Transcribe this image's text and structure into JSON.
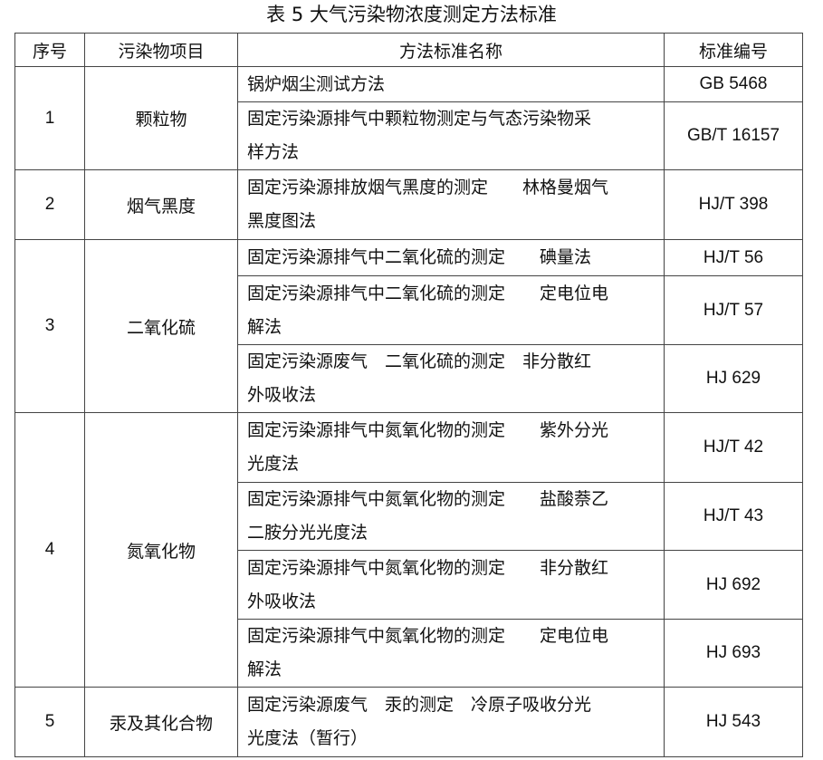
{
  "title": "表 5 大气污染物浓度测定方法标准",
  "headers": [
    "序号",
    "污染物项目",
    "方法标准名称",
    "标准编号"
  ],
  "groups": [
    {
      "no": "1",
      "item": "颗粒物",
      "methods": [
        {
          "name": "锅炉烟尘测试方法",
          "code": "GB 5468"
        },
        {
          "name": "固定污染源排气中颗粒物测定与气态污染物采\n样方法",
          "code": "GB/T 16157"
        }
      ]
    },
    {
      "no": "2",
      "item": "烟气黑度",
      "methods": [
        {
          "name": "固定污染源排放烟气黑度的测定　　林格曼烟气\n黑度图法",
          "code": "HJ/T 398"
        }
      ]
    },
    {
      "no": "3",
      "item": "二氧化硫",
      "methods": [
        {
          "name": "固定污染源排气中二氧化硫的测定　　碘量法",
          "code": "HJ/T 56"
        },
        {
          "name": "固定污染源排气中二氧化硫的测定　　定电位电\n解法",
          "code": "HJ/T 57"
        },
        {
          "name": "固定污染源废气　二氧化硫的测定　非分散红\n外吸收法",
          "code": "HJ 629"
        }
      ]
    },
    {
      "no": "4",
      "item": "氮氧化物",
      "methods": [
        {
          "name": "固定污染源排气中氮氧化物的测定　　紫外分光\n光度法",
          "code": "HJ/T 42"
        },
        {
          "name": "固定污染源排气中氮氧化物的测定　　盐酸萘乙\n二胺分光光度法",
          "code": "HJ/T 43"
        },
        {
          "name": "固定污染源排气中氮氧化物的测定　　非分散红\n外吸收法",
          "code": "HJ 692"
        },
        {
          "name": "固定污染源排气中氮氧化物的测定　　定电位电\n解法",
          "code": "HJ 693"
        }
      ]
    },
    {
      "no": "5",
      "item": "汞及其化合物",
      "methods": [
        {
          "name": "固定污染源废气　汞的测定　冷原子吸收分光\n光度法（暂行）",
          "code": "HJ 543"
        }
      ]
    }
  ]
}
